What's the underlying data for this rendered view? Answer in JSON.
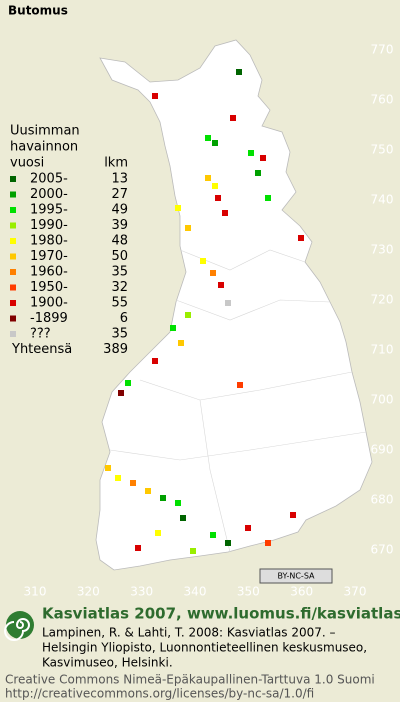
{
  "title": "Butomus",
  "legend": {
    "heading": [
      "Uusimman",
      "havainnon"
    ],
    "year_header": "vuosi",
    "count_header": "lkm",
    "rows": [
      {
        "label": "2005-",
        "count": 13,
        "color": "#006400"
      },
      {
        "label": "2000-",
        "count": 27,
        "color": "#00a000"
      },
      {
        "label": "1995-",
        "count": 49,
        "color": "#00e000"
      },
      {
        "label": "1990-",
        "count": 39,
        "color": "#99ee00"
      },
      {
        "label": "1980-",
        "count": 48,
        "color": "#ffff00"
      },
      {
        "label": "1970-",
        "count": 50,
        "color": "#ffc800"
      },
      {
        "label": "1960-",
        "count": 35,
        "color": "#ff8000"
      },
      {
        "label": "1950-",
        "count": 32,
        "color": "#ff3c00"
      },
      {
        "label": "1900-",
        "count": 55,
        "color": "#d80000"
      },
      {
        "label": "-1899",
        "count": 6,
        "color": "#800000"
      },
      {
        "label": "???",
        "count": 35,
        "color": "#c8c8c8"
      }
    ],
    "total": {
      "label": "Yhteensä",
      "count": 389
    }
  },
  "grid": {
    "yticks": [
      770,
      760,
      750,
      740,
      730,
      720,
      710,
      700,
      690,
      680,
      670
    ],
    "xticks": [
      310,
      320,
      330,
      340,
      350,
      360,
      370
    ]
  },
  "license_badge": "BY-NC-SA",
  "footer": {
    "title": "Kasviatlas 2007, www.luomus.fi/kasviatlas",
    "citation": [
      "Lampinen, R. & Lahti, T. 2008: Kasviatlas 2007. –",
      "Helsingin Yliopisto, Luonnontieteellinen keskusmuseo,",
      "Kasvimuseo, Helsinki."
    ],
    "license": [
      "Creative Commons Nimeä-Epäkaupallinen-Tarttuva 1.0 Suomi",
      "http://creativecommons.org/licenses/by-nc-sa/1.0/fi"
    ]
  }
}
